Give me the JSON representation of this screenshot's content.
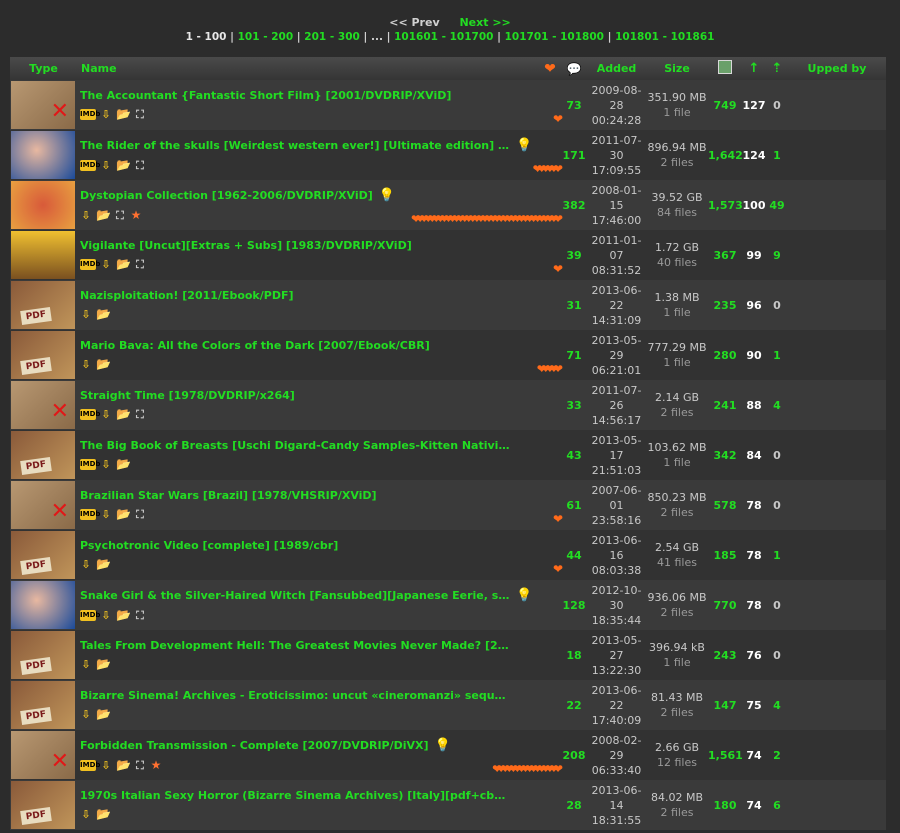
{
  "pager": {
    "prev_label": "<< Prev",
    "next_label": "Next >>",
    "current_range": "1 - 100",
    "ranges": [
      "101 - 200",
      "201 - 300",
      "...",
      "101601 - 101700",
      "101701 - 101800",
      "101801 - 101861"
    ]
  },
  "headers": {
    "type": "Type",
    "name": "Name",
    "added": "Added",
    "size": "Size",
    "upped_by": "Upped by"
  },
  "icons": {
    "heart_header": "heart-icon",
    "comments_header": "comments-icon",
    "snatched_header": "snatched-icon",
    "seeders_header": "seeders-arrow-icon",
    "leechers_header": "leechers-arrow-icon"
  },
  "colors": {
    "accent": "#22dd22",
    "heart": "#ff6a1a"
  },
  "rows": [
    {
      "name": "The Accountant {Fantastic Short Film} [2001/DVDRIP/XViD]",
      "thumb": "movie",
      "badges": [
        "imdb",
        "dl",
        "folder",
        "net"
      ],
      "bulb": false,
      "hearts": 1,
      "comments": "73",
      "date": "2009-08-28",
      "time": "00:24:28",
      "size": "351.90 MB",
      "files": "1 file",
      "snatched": "749",
      "seeders": "127",
      "leechers": "0"
    },
    {
      "name": "The Rider of the skulls [Weirdest western ever!] [Ultimate edition] [Mexico] [fa...",
      "thumb": "face",
      "badges": [
        "imdb",
        "dl",
        "folder",
        "net"
      ],
      "bulb": true,
      "hearts": 6,
      "comments": "171",
      "date": "2011-07-30",
      "time": "17:09:55",
      "size": "896.94 MB",
      "files": "2 files",
      "snatched": "1,642",
      "seeders": "124",
      "leechers": "1"
    },
    {
      "name": "Dystopian Collection [1962-2006/DVDRIP/XViD]",
      "thumb": "colored",
      "badges": [
        "dl",
        "folder",
        "net",
        "star"
      ],
      "bulb": true,
      "hearts": 36,
      "comments": "382",
      "date": "2008-01-15",
      "time": "17:46:00",
      "size": "39.52 GB",
      "files": "84 files",
      "snatched": "1,573",
      "seeders": "100",
      "leechers": "49"
    },
    {
      "name": "Vigilante [Uncut][Extras + Subs] [1983/DVDRIP/XViD]",
      "thumb": "action",
      "badges": [
        "imdb",
        "dl",
        "folder",
        "net"
      ],
      "bulb": false,
      "hearts": 1,
      "comments": "39",
      "date": "2011-01-07",
      "time": "08:31:52",
      "size": "1.72 GB",
      "files": "40 files",
      "snatched": "367",
      "seeders": "99",
      "leechers": "9"
    },
    {
      "name": "Nazisploitation! [2011/Ebook/PDF]",
      "thumb": "book",
      "badges": [
        "dl",
        "folder"
      ],
      "bulb": false,
      "hearts": 0,
      "comments": "31",
      "date": "2013-06-22",
      "time": "14:31:09",
      "size": "1.38 MB",
      "files": "1 file",
      "snatched": "235",
      "seeders": "96",
      "leechers": "0"
    },
    {
      "name": "Mario Bava: All the Colors of the Dark [2007/Ebook/CBR]",
      "thumb": "book",
      "badges": [
        "dl",
        "folder"
      ],
      "bulb": false,
      "hearts": 5,
      "comments": "71",
      "date": "2013-05-29",
      "time": "06:21:01",
      "size": "777.29 MB",
      "files": "1 file",
      "snatched": "280",
      "seeders": "90",
      "leechers": "1"
    },
    {
      "name": "Straight Time [1978/DVDRIP/x264]",
      "thumb": "movie",
      "badges": [
        "imdb",
        "dl",
        "folder",
        "net"
      ],
      "bulb": false,
      "hearts": 0,
      "comments": "33",
      "date": "2011-07-26",
      "time": "14:56:17",
      "size": "2.14 GB",
      "files": "2 files",
      "snatched": "241",
      "seeders": "88",
      "leechers": "4"
    },
    {
      "name": "The Big Book of Breasts [Uschi Digard-Candy Samples-Kitten Natividad-Michelle An...",
      "thumb": "book",
      "badges": [
        "imdb",
        "dl",
        "folder"
      ],
      "bulb": false,
      "hearts": 0,
      "comments": "43",
      "date": "2013-05-17",
      "time": "21:51:03",
      "size": "103.62 MB",
      "files": "1 file",
      "snatched": "342",
      "seeders": "84",
      "leechers": "0"
    },
    {
      "name": "Brazilian Star Wars [Brazil] [1978/VHSRIP/XViD]",
      "thumb": "movie",
      "badges": [
        "imdb",
        "dl",
        "folder",
        "net"
      ],
      "bulb": false,
      "hearts": 1,
      "comments": "61",
      "date": "2007-06-01",
      "time": "23:58:16",
      "size": "850.23 MB",
      "files": "2 files",
      "snatched": "578",
      "seeders": "78",
      "leechers": "0"
    },
    {
      "name": "Psychotronic Video [complete] [1989/cbr]",
      "thumb": "book",
      "badges": [
        "dl",
        "folder"
      ],
      "bulb": false,
      "hearts": 1,
      "comments": "44",
      "date": "2013-06-16",
      "time": "08:03:38",
      "size": "2.54 GB",
      "files": "41 files",
      "snatched": "185",
      "seeders": "78",
      "leechers": "1"
    },
    {
      "name": "Snake Girl & the Silver-Haired Witch [Fansubbed][Japanese Eerie, surreal weird h...",
      "thumb": "face",
      "badges": [
        "imdb",
        "dl",
        "folder",
        "net"
      ],
      "bulb": true,
      "hearts": 0,
      "comments": "128",
      "date": "2012-10-30",
      "time": "18:35:44",
      "size": "936.06 MB",
      "files": "2 files",
      "snatched": "770",
      "seeders": "78",
      "leechers": "0"
    },
    {
      "name": "Tales From Development Hell: The Greatest Movies Never Made? [2012/EPUB]",
      "thumb": "book",
      "badges": [
        "dl",
        "folder"
      ],
      "bulb": false,
      "hearts": 0,
      "comments": "18",
      "date": "2013-05-27",
      "time": "13:22:30",
      "size": "396.94 kB",
      "files": "1 file",
      "snatched": "243",
      "seeders": "76",
      "leechers": "0"
    },
    {
      "name": "Bizarre Sinema! Archives - Eroticissimo: uncut «cineromanzi» sequences from rare...",
      "thumb": "book",
      "badges": [
        "dl",
        "folder"
      ],
      "bulb": false,
      "hearts": 0,
      "comments": "22",
      "date": "2013-06-22",
      "time": "17:40:09",
      "size": "81.43 MB",
      "files": "2 files",
      "snatched": "147",
      "seeders": "75",
      "leechers": "4"
    },
    {
      "name": "Forbidden Transmission - Complete [2007/DVDRIP/DiVX]",
      "thumb": "movie",
      "badges": [
        "imdb",
        "dl",
        "folder",
        "net",
        "star"
      ],
      "bulb": true,
      "hearts": 16,
      "comments": "208",
      "date": "2008-02-29",
      "time": "06:33:40",
      "size": "2.66 GB",
      "files": "12 files",
      "snatched": "1,561",
      "seeders": "74",
      "leechers": "2"
    },
    {
      "name": "1970s Italian Sexy Horror (Bizarre Sinema Archives) [Italy][pdf+cbr] [2007/Other...",
      "thumb": "book",
      "badges": [
        "dl",
        "folder"
      ],
      "bulb": false,
      "hearts": 0,
      "comments": "28",
      "date": "2013-06-14",
      "time": "18:31:55",
      "size": "84.02 MB",
      "files": "2 files",
      "snatched": "180",
      "seeders": "74",
      "leechers": "6"
    }
  ]
}
